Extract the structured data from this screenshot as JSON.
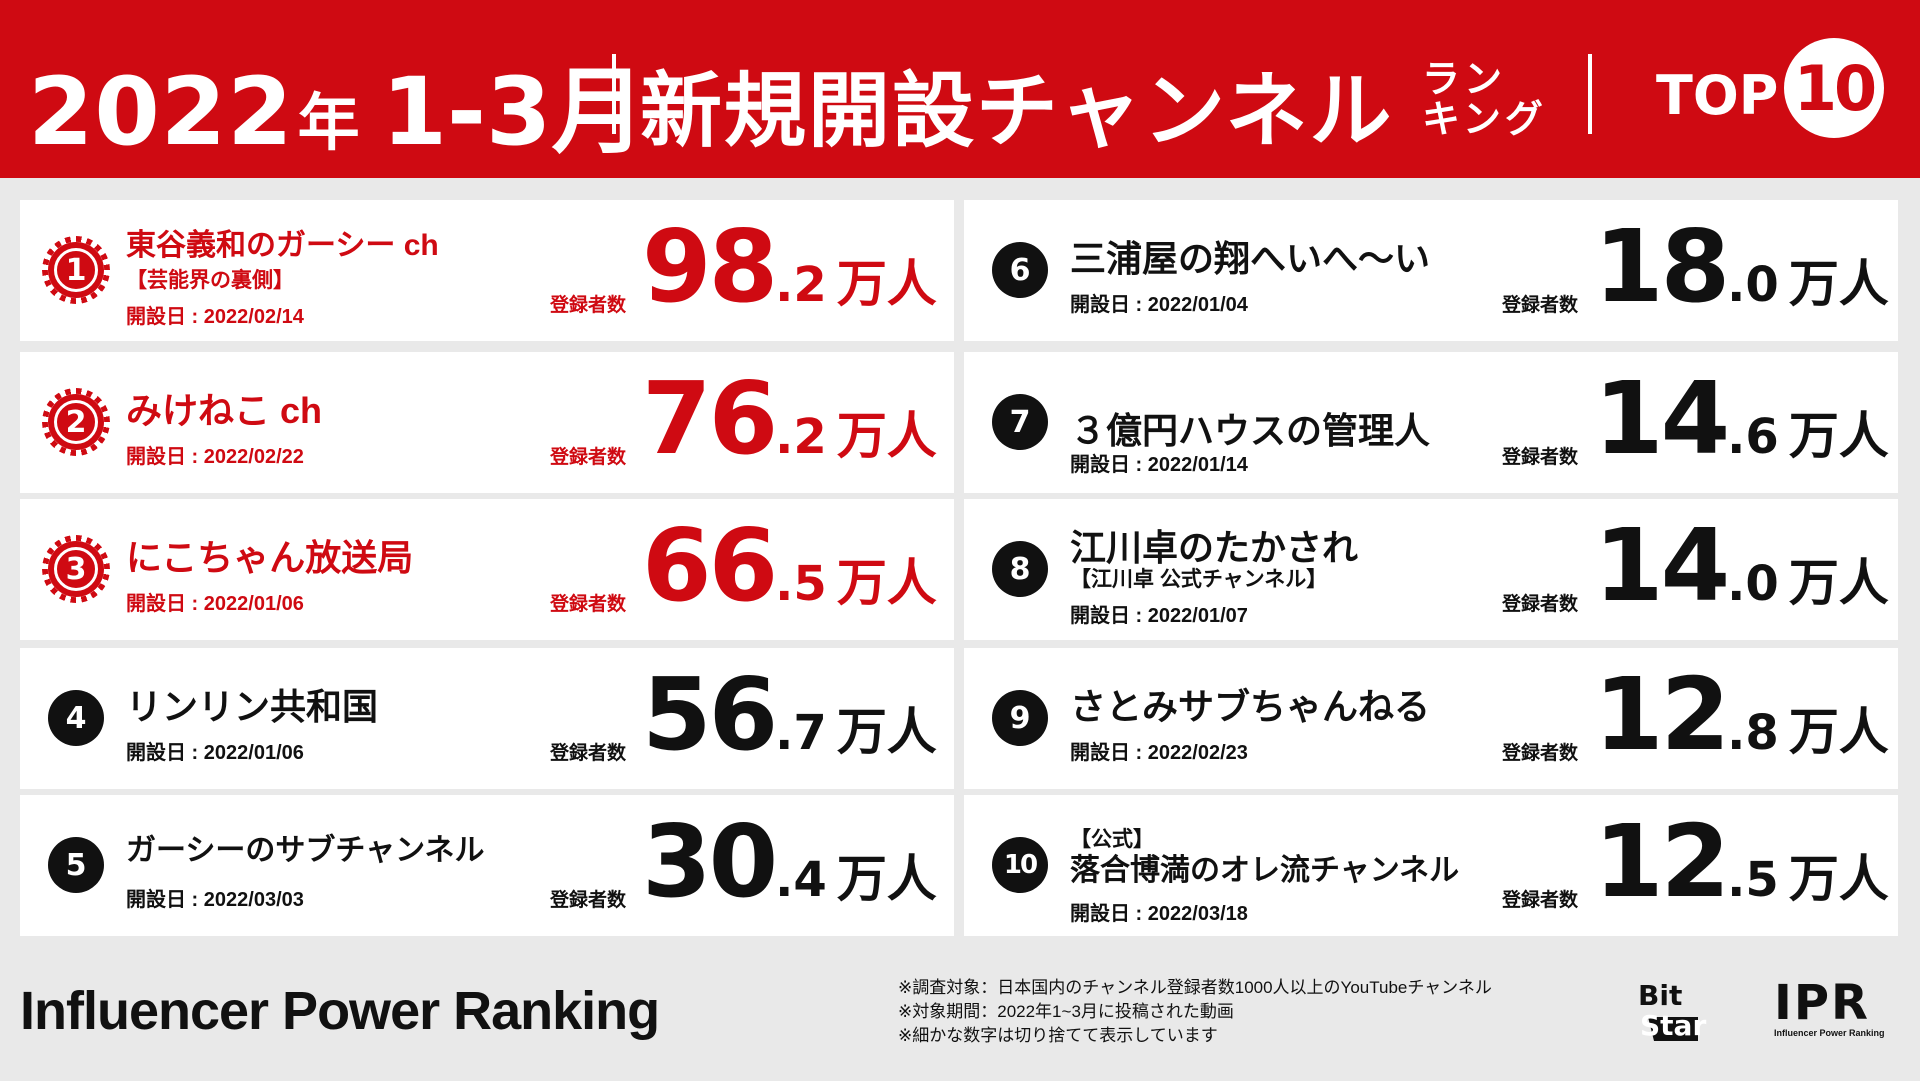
{
  "header": {
    "year": "2022",
    "nen": "年",
    "period": "1-3月",
    "main_title": "新規開設チャンネル",
    "rank_line1": "ラン",
    "rank_line2": "キング",
    "top_label": "TOP",
    "top_number": "10"
  },
  "reg_label": "登録者数",
  "unit": "万人",
  "rankings": [
    {
      "rank": "1",
      "name": "東谷義和のガーシー ch",
      "sub": "【芸能界の裏側】",
      "date": "開設日 : 2022/02/14",
      "int": "98",
      "dec": ".2",
      "highlight": true
    },
    {
      "rank": "2",
      "name": "みけねこ ch",
      "sub": "",
      "date": "開設日 : 2022/02/22",
      "int": "76",
      "dec": ".2",
      "highlight": true
    },
    {
      "rank": "3",
      "name": "にこちゃん放送局",
      "sub": "",
      "date": "開設日 : 2022/01/06",
      "int": "66",
      "dec": ".5",
      "highlight": true
    },
    {
      "rank": "4",
      "name": "リンリン共和国",
      "sub": "",
      "date": "開設日 : 2022/01/06",
      "int": "56",
      "dec": ".7",
      "highlight": false
    },
    {
      "rank": "5",
      "name": "ガーシーのサブチャンネル",
      "sub": "",
      "date": "開設日 : 2022/03/03",
      "int": "30",
      "dec": ".4",
      "highlight": false
    },
    {
      "rank": "6",
      "name": "三浦屋の翔へいへ～い",
      "sub": "",
      "date": "開設日 : 2022/01/04",
      "int": "18",
      "dec": ".0",
      "highlight": false
    },
    {
      "rank": "7",
      "name": "３億円ハウスの管理人",
      "sub": "",
      "date": "開設日 : 2022/01/14",
      "int": "14",
      "dec": ".6",
      "highlight": false
    },
    {
      "rank": "8",
      "name": "江川卓のたかされ",
      "sub": "【江川卓 公式チャンネル】",
      "date": "開設日 : 2022/01/07",
      "int": "14",
      "dec": ".0",
      "highlight": false
    },
    {
      "rank": "9",
      "name": "さとみサブちゃんねる",
      "sub": "",
      "date": "開設日 : 2022/02/23",
      "int": "12",
      "dec": ".8",
      "highlight": false
    },
    {
      "rank": "10",
      "name": "落合博満のオレ流チャンネル",
      "pre": "【公式】",
      "sub": "",
      "date": "開設日 : 2022/03/18",
      "int": "12",
      "dec": ".5",
      "highlight": false
    }
  ],
  "footer": {
    "title": "Influencer Power Ranking",
    "note1": "※調査対象：日本国内のチャンネル登録者数1000人以上のYouTubeチャンネル",
    "note2": "※対象期間：2022年1~3月に投稿された動画",
    "note3": "※細かな数字は切り捨てて表示しています",
    "logo_bitstar": "BitStar",
    "logo_ipr": "IPR",
    "logo_ipr_small": "Influencer Power Ranking"
  },
  "colors": {
    "accent": "#cf0a12",
    "background": "#e9e9e9",
    "card": "#ffffff"
  }
}
